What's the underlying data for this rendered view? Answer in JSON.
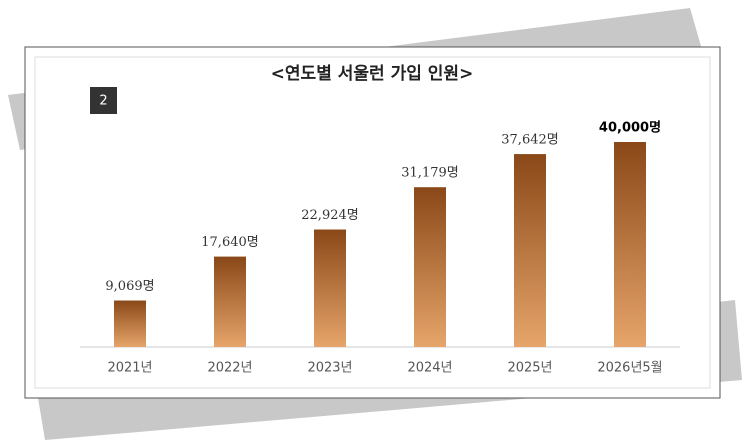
{
  "chart_data": {
    "type": "bar",
    "title": "<연도별 서울런 가입 인원>",
    "badge": "2",
    "categories": [
      "2021년",
      "2022년",
      "2023년",
      "2024년",
      "2025년",
      "2026년5월"
    ],
    "values": [
      9069,
      17640,
      22924,
      31179,
      37642,
      40000
    ],
    "value_labels": [
      "9,069명",
      "17,640명",
      "22,924명",
      "31,179명",
      "37,642명",
      "40,000명"
    ],
    "colors": [
      "#8a4818",
      "#e6a56a"
    ]
  }
}
